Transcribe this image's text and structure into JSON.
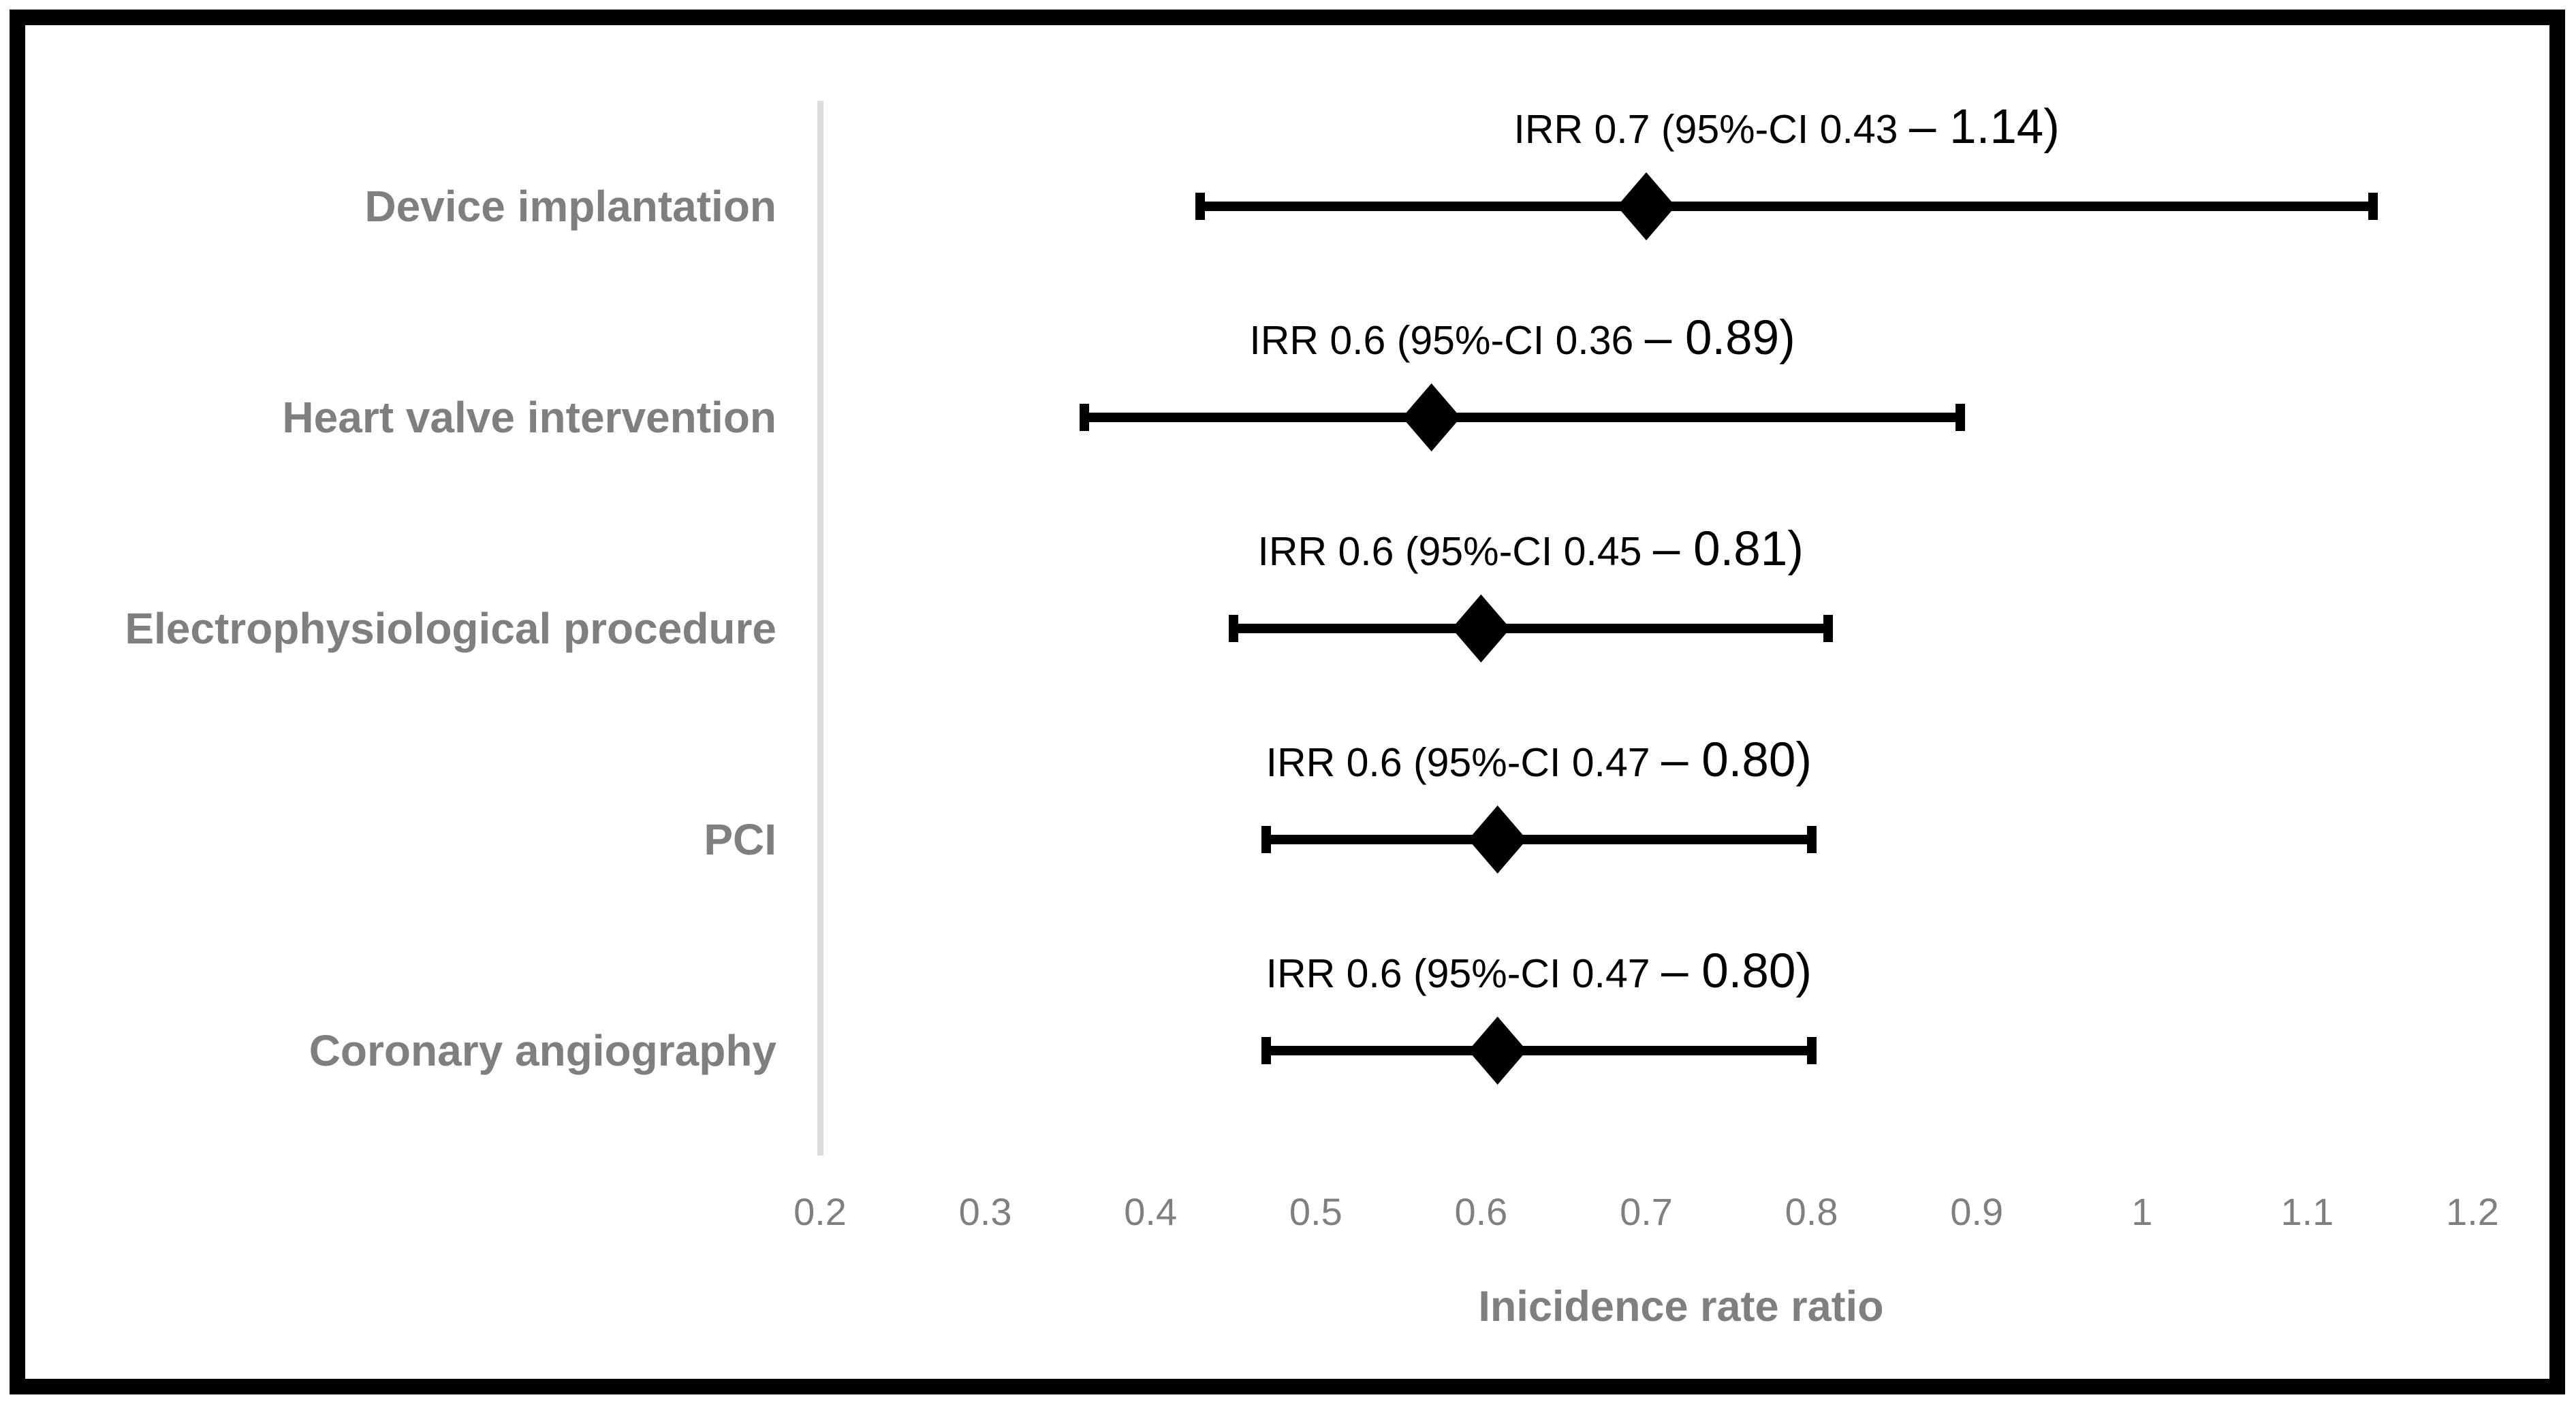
{
  "chart_data": {
    "type": "forest",
    "title": "",
    "xlabel": "Inicidence rate ratio",
    "x_axis": {
      "min": 0.2,
      "max": 1.2,
      "tick_step": 0.1,
      "tick_labels": [
        "0.2",
        "0.3",
        "0.4",
        "0.5",
        "0.6",
        "0.7",
        "0.8",
        "0.9",
        "1",
        "1.1",
        "1.2"
      ]
    },
    "grid": "off",
    "legend": "none",
    "rows": [
      {
        "label": "Device implantation",
        "irr_text": "0.7",
        "marker_value": 0.7,
        "ci_low": 0.43,
        "ci_high": 1.14,
        "annotation_main": "IRR 0.7 (95%-CI 0.43 ",
        "annotation_end": "– 1.14)"
      },
      {
        "label": "Heart valve intervention",
        "irr_text": "0.6",
        "marker_value": 0.57,
        "ci_low": 0.36,
        "ci_high": 0.89,
        "annotation_main": "IRR 0.6 (95%-CI 0.36 ",
        "annotation_end": "– 0.89)"
      },
      {
        "label": "Electrophysiological procedure",
        "irr_text": "0.6",
        "marker_value": 0.6,
        "ci_low": 0.45,
        "ci_high": 0.81,
        "annotation_main": "IRR 0.6 (95%-CI 0.45 ",
        "annotation_end": "– 0.81)"
      },
      {
        "label": "PCI",
        "irr_text": "0.6",
        "marker_value": 0.61,
        "ci_low": 0.47,
        "ci_high": 0.8,
        "annotation_main": "IRR 0.6 (95%-CI 0.47 ",
        "annotation_end": "– 0.80)"
      },
      {
        "label": "Coronary angiography",
        "irr_text": "0.6",
        "marker_value": 0.61,
        "ci_low": 0.47,
        "ci_high": 0.8,
        "annotation_main": "IRR 0.6 (95%-CI 0.47 ",
        "annotation_end": "– 0.80)"
      }
    ],
    "colors": {
      "marker": "#000000",
      "ci_bar": "#000000",
      "annotation_text": "#000000",
      "category_label": "#7f7f7f",
      "tick_label": "#7f7f7f",
      "axis_title": "#7f7f7f",
      "axis_line": "#dcdcdc",
      "frame_border": "#000000",
      "background": "#ffffff"
    }
  }
}
